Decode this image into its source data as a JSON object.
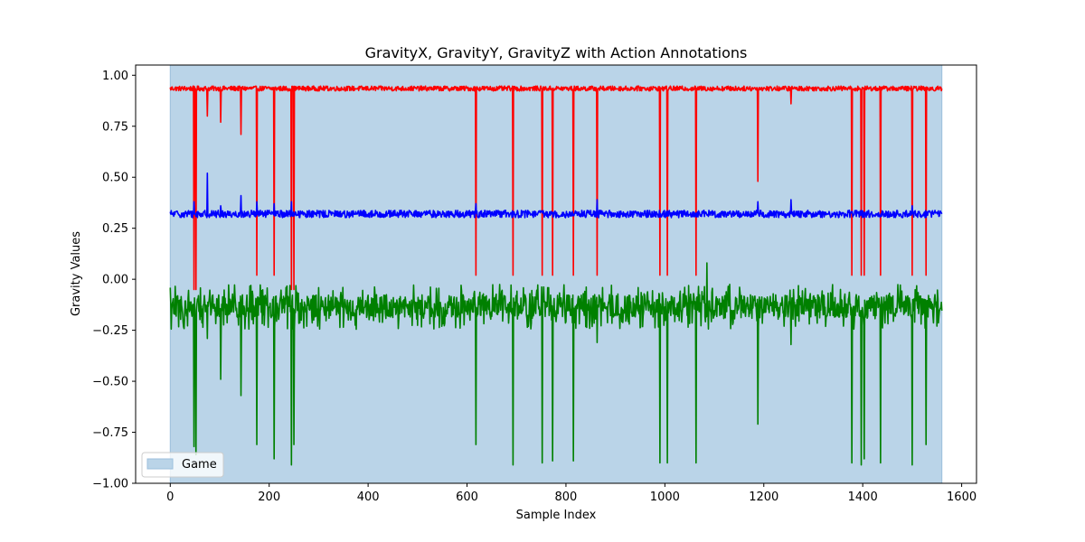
{
  "chart_data": {
    "type": "line",
    "title": "GravityX, GravityY, GravityZ with Action Annotations",
    "xlabel": "Sample Index",
    "ylabel": "Gravity Values",
    "xlim": [
      -70,
      1630
    ],
    "ylim": [
      -1.0,
      1.05
    ],
    "xticks": [
      0,
      200,
      400,
      600,
      800,
      1000,
      1200,
      1400,
      1600
    ],
    "xtick_labels": [
      "0",
      "200",
      "400",
      "600",
      "800",
      "1000",
      "1200",
      "1400",
      "1600"
    ],
    "yticks": [
      -1.0,
      -0.75,
      -0.5,
      -0.25,
      0.0,
      0.25,
      0.5,
      0.75,
      1.0
    ],
    "ytick_labels": [
      "−1.00",
      "−0.75",
      "−0.50",
      "−0.25",
      "0.00",
      "0.25",
      "0.50",
      "0.75",
      "1.00"
    ],
    "grid": false,
    "legend": {
      "placement": "lower-left",
      "entries": [
        {
          "label": "Game",
          "color": "#bad4e8"
        }
      ]
    },
    "annotation_span": {
      "label": "Game",
      "x_start": 0,
      "x_end": 1560,
      "color": "#bad4e8"
    },
    "n_samples": 1560,
    "series": [
      {
        "color": "#ff0000",
        "baseline": 0.935,
        "noise": 0.012,
        "spikes": [
          [
            48,
            -0.05
          ],
          [
            52,
            -0.05
          ],
          [
            75,
            0.8
          ],
          [
            102,
            0.77
          ],
          [
            143,
            0.71
          ],
          [
            175,
            0.02
          ],
          [
            210,
            0.02
          ],
          [
            245,
            -0.05
          ],
          [
            250,
            -0.05
          ],
          [
            618,
            0.02
          ],
          [
            693,
            0.02
          ],
          [
            752,
            0.02
          ],
          [
            773,
            0.02
          ],
          [
            815,
            0.02
          ],
          [
            863,
            0.02
          ],
          [
            990,
            0.02
          ],
          [
            1005,
            0.02
          ],
          [
            1063,
            0.02
          ],
          [
            1188,
            0.48
          ],
          [
            1255,
            0.86
          ],
          [
            1378,
            0.02
          ],
          [
            1397,
            0.02
          ],
          [
            1403,
            0.02
          ],
          [
            1436,
            0.02
          ],
          [
            1500,
            0.02
          ],
          [
            1528,
            0.02
          ]
        ]
      },
      {
        "color": "#0000ff",
        "baseline": 0.32,
        "noise": 0.018,
        "spikes": [
          [
            48,
            0.38
          ],
          [
            75,
            0.52
          ],
          [
            102,
            0.36
          ],
          [
            143,
            0.41
          ],
          [
            175,
            0.38
          ],
          [
            210,
            0.37
          ],
          [
            245,
            0.38
          ],
          [
            618,
            0.37
          ],
          [
            863,
            0.39
          ],
          [
            1188,
            0.38
          ],
          [
            1255,
            0.39
          ],
          [
            1500,
            0.36
          ]
        ]
      },
      {
        "color": "#008000",
        "baseline": -0.13,
        "noise": 0.055,
        "spikes": [
          [
            48,
            -0.82
          ],
          [
            52,
            -0.86
          ],
          [
            75,
            -0.29
          ],
          [
            102,
            -0.49
          ],
          [
            143,
            -0.57
          ],
          [
            175,
            -0.81
          ],
          [
            210,
            -0.88
          ],
          [
            245,
            -0.91
          ],
          [
            250,
            -0.81
          ],
          [
            618,
            -0.81
          ],
          [
            693,
            -0.91
          ],
          [
            752,
            -0.9
          ],
          [
            773,
            -0.89
          ],
          [
            815,
            -0.89
          ],
          [
            863,
            -0.31
          ],
          [
            990,
            -0.9
          ],
          [
            1005,
            -0.9
          ],
          [
            1063,
            -0.9
          ],
          [
            1085,
            0.08
          ],
          [
            1188,
            -0.71
          ],
          [
            1255,
            -0.32
          ],
          [
            1378,
            -0.9
          ],
          [
            1397,
            -0.91
          ],
          [
            1403,
            -0.88
          ],
          [
            1436,
            -0.9
          ],
          [
            1500,
            -0.91
          ],
          [
            1528,
            -0.81
          ]
        ]
      }
    ]
  }
}
